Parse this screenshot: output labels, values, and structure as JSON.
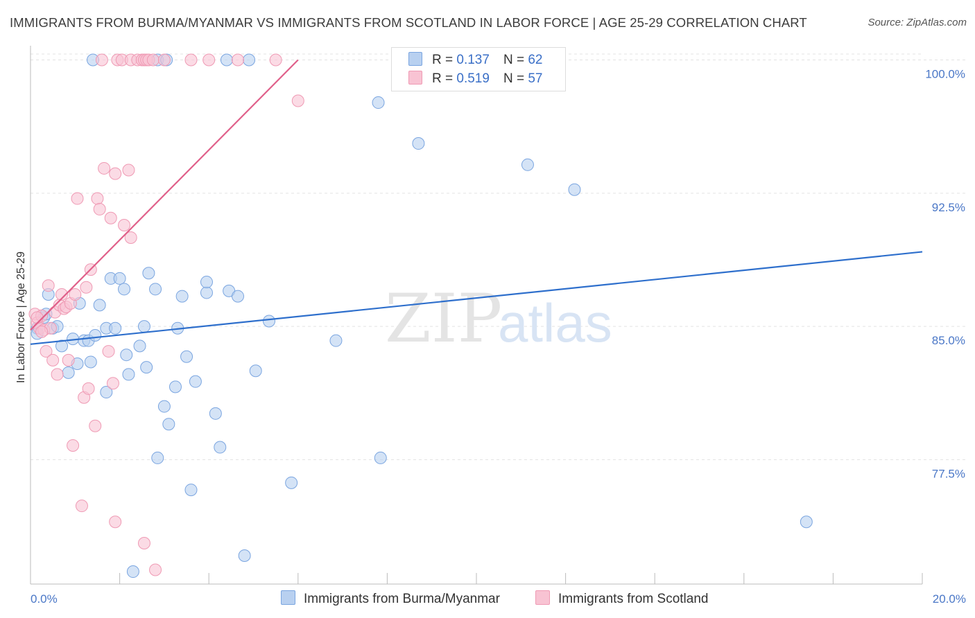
{
  "header": {
    "title": "IMMIGRANTS FROM BURMA/MYANMAR VS IMMIGRANTS FROM SCOTLAND IN LABOR FORCE | AGE 25-29 CORRELATION CHART",
    "source": "Source: ZipAtlas.com"
  },
  "watermark": {
    "zip": "ZIP",
    "atlas": "atlas"
  },
  "legend": {
    "r_label": "R =",
    "n_label": "N =",
    "series": [
      {
        "r": "0.137",
        "n": "62"
      },
      {
        "r": "0.519",
        "n": "57"
      }
    ]
  },
  "bottom_legend": {
    "items": [
      "Immigrants from Burma/Myanmar",
      "Immigrants from Scotland"
    ]
  },
  "colors": {
    "burma_fill": "#b8d0f0",
    "burma_stroke": "#7aa5e0",
    "burma_line": "#2e6fcc",
    "scotland_fill": "#f8c3d3",
    "scotland_stroke": "#ef9ab4",
    "scotland_line": "#e0608a",
    "tick_text": "#4a77c7",
    "grid": "#e3e3e3"
  },
  "chart_data": {
    "type": "scatter",
    "title": "IMMIGRANTS FROM BURMA/MYANMAR VS IMMIGRANTS FROM SCOTLAND IN LABOR FORCE | AGE 25-29 CORRELATION CHART",
    "xlabel": "",
    "ylabel": "In Labor Force | Age 25-29",
    "xlim": [
      0,
      20
    ],
    "ylim": [
      70.5,
      100.8
    ],
    "x_tick_labels": [
      "0.0%",
      "20.0%"
    ],
    "y_ticks": [
      77.5,
      85.0,
      92.5,
      100.0
    ],
    "y_tick_labels": [
      "77.5%",
      "85.0%",
      "92.5%",
      "100.0%"
    ],
    "series": [
      {
        "name": "Immigrants from Burma/Myanmar",
        "r": 0.137,
        "n": 62,
        "trend": {
          "x": [
            0,
            20
          ],
          "y": [
            84.0,
            89.2
          ]
        },
        "points": [
          [
            0.15,
            84.9
          ],
          [
            0.15,
            84.6
          ],
          [
            0.3,
            85.5
          ],
          [
            0.35,
            85.7
          ],
          [
            0.4,
            86.8
          ],
          [
            0.5,
            84.9
          ],
          [
            0.6,
            85.0
          ],
          [
            0.7,
            83.9
          ],
          [
            0.85,
            82.4
          ],
          [
            0.95,
            84.3
          ],
          [
            1.05,
            82.9
          ],
          [
            1.1,
            86.3
          ],
          [
            1.2,
            84.2
          ],
          [
            1.3,
            84.2
          ],
          [
            1.35,
            83.0
          ],
          [
            1.45,
            84.5
          ],
          [
            1.55,
            86.2
          ],
          [
            1.7,
            84.9
          ],
          [
            1.7,
            81.3
          ],
          [
            1.8,
            87.7
          ],
          [
            1.9,
            84.9
          ],
          [
            2.0,
            87.7
          ],
          [
            2.1,
            87.1
          ],
          [
            2.15,
            83.4
          ],
          [
            2.2,
            82.3
          ],
          [
            2.45,
            83.9
          ],
          [
            2.55,
            85.0
          ],
          [
            2.6,
            82.7
          ],
          [
            2.65,
            88.0
          ],
          [
            2.8,
            87.1
          ],
          [
            2.85,
            77.6
          ],
          [
            3.0,
            80.5
          ],
          [
            3.1,
            79.5
          ],
          [
            3.25,
            81.6
          ],
          [
            3.3,
            84.9
          ],
          [
            3.4,
            86.7
          ],
          [
            3.5,
            83.3
          ],
          [
            3.6,
            75.8
          ],
          [
            3.7,
            81.9
          ],
          [
            3.95,
            86.9
          ],
          [
            3.95,
            87.5
          ],
          [
            4.15,
            80.1
          ],
          [
            4.25,
            78.2
          ],
          [
            4.45,
            87.0
          ],
          [
            4.65,
            86.7
          ],
          [
            4.8,
            72.1
          ],
          [
            5.05,
            82.5
          ],
          [
            5.35,
            85.3
          ],
          [
            5.85,
            76.2
          ],
          [
            6.85,
            84.2
          ],
          [
            7.85,
            77.6
          ],
          [
            7.8,
            97.6
          ],
          [
            8.7,
            95.3
          ],
          [
            11.15,
            94.1
          ],
          [
            12.2,
            92.7
          ],
          [
            17.4,
            74.0
          ],
          [
            1.4,
            100.0
          ],
          [
            2.85,
            100.0
          ],
          [
            3.05,
            100.0
          ],
          [
            4.4,
            100.0
          ],
          [
            4.9,
            100.0
          ],
          [
            2.3,
            71.2
          ]
        ]
      },
      {
        "name": "Immigrants from Scotland",
        "r": 0.519,
        "n": 57,
        "trend": {
          "x": [
            0,
            6.0
          ],
          "y": [
            84.8,
            100.0
          ]
        },
        "points": [
          [
            0.1,
            85.7
          ],
          [
            0.15,
            85.2
          ],
          [
            0.2,
            84.9
          ],
          [
            0.25,
            85.6
          ],
          [
            0.3,
            84.8
          ],
          [
            0.35,
            83.6
          ],
          [
            0.4,
            87.3
          ],
          [
            0.5,
            83.1
          ],
          [
            0.55,
            85.8
          ],
          [
            0.6,
            82.3
          ],
          [
            0.65,
            86.2
          ],
          [
            0.7,
            86.8
          ],
          [
            0.75,
            86.0
          ],
          [
            0.8,
            86.1
          ],
          [
            0.85,
            83.1
          ],
          [
            0.9,
            86.3
          ],
          [
            0.95,
            78.3
          ],
          [
            1.0,
            86.8
          ],
          [
            1.05,
            92.2
          ],
          [
            1.15,
            74.9
          ],
          [
            1.2,
            81.0
          ],
          [
            1.25,
            87.2
          ],
          [
            1.3,
            81.5
          ],
          [
            1.35,
            88.2
          ],
          [
            1.45,
            79.4
          ],
          [
            1.5,
            92.2
          ],
          [
            1.55,
            91.6
          ],
          [
            1.65,
            93.9
          ],
          [
            1.75,
            83.6
          ],
          [
            1.8,
            91.1
          ],
          [
            1.85,
            81.8
          ],
          [
            1.9,
            74.0
          ],
          [
            1.9,
            93.6
          ],
          [
            2.1,
            90.7
          ],
          [
            2.2,
            93.8
          ],
          [
            2.25,
            90.0
          ],
          [
            2.55,
            72.8
          ],
          [
            2.8,
            71.3
          ],
          [
            6.0,
            97.7
          ],
          [
            1.6,
            100.0
          ],
          [
            1.95,
            100.0
          ],
          [
            2.05,
            100.0
          ],
          [
            2.25,
            100.0
          ],
          [
            2.4,
            100.0
          ],
          [
            2.5,
            100.0
          ],
          [
            2.55,
            100.0
          ],
          [
            2.6,
            100.0
          ],
          [
            2.65,
            100.0
          ],
          [
            2.75,
            100.0
          ],
          [
            3.0,
            100.0
          ],
          [
            3.6,
            100.0
          ],
          [
            4.0,
            100.0
          ],
          [
            4.65,
            100.0
          ],
          [
            5.5,
            100.0
          ],
          [
            0.15,
            85.5
          ],
          [
            0.45,
            84.9
          ],
          [
            0.25,
            84.7
          ]
        ]
      }
    ]
  }
}
